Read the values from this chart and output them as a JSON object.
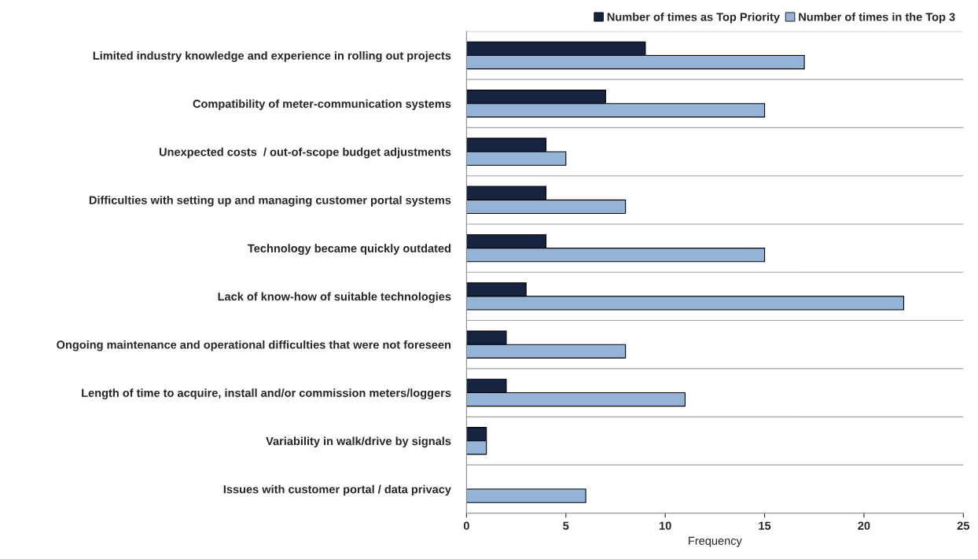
{
  "chart_data": {
    "type": "bar",
    "orientation": "horizontal",
    "xlabel": "Frequency",
    "categories": [
      "Limited industry knowledge and experience in rolling out projects",
      "Compatibility of meter-communication systems",
      "Unexpected costs  / out-of-scope budget adjustments",
      "Difficulties with setting up and managing customer portal systems",
      "Technology became quickly outdated",
      "Lack of know-how of suitable technologies",
      "Ongoing maintenance and operational difficulties that were not foreseen",
      "Length of time to acquire, install and/or commission meters/loggers",
      "Variability in walk/drive by signals",
      "Issues with customer portal / data privacy"
    ],
    "series": [
      {
        "name": "Number of times as Top Priority",
        "color": "#16243f",
        "values": [
          9,
          7,
          4,
          4,
          4,
          3,
          2,
          2,
          1,
          null
        ]
      },
      {
        "name": "Number of times in the Top 3",
        "color": "#95b3d7",
        "values": [
          17,
          15,
          5,
          8,
          15,
          22,
          8,
          11,
          1,
          6
        ]
      }
    ],
    "xlim": [
      0,
      25
    ],
    "xticks": [
      0,
      5,
      10,
      15,
      20,
      25
    ],
    "grid": "y",
    "legend": "top right"
  }
}
